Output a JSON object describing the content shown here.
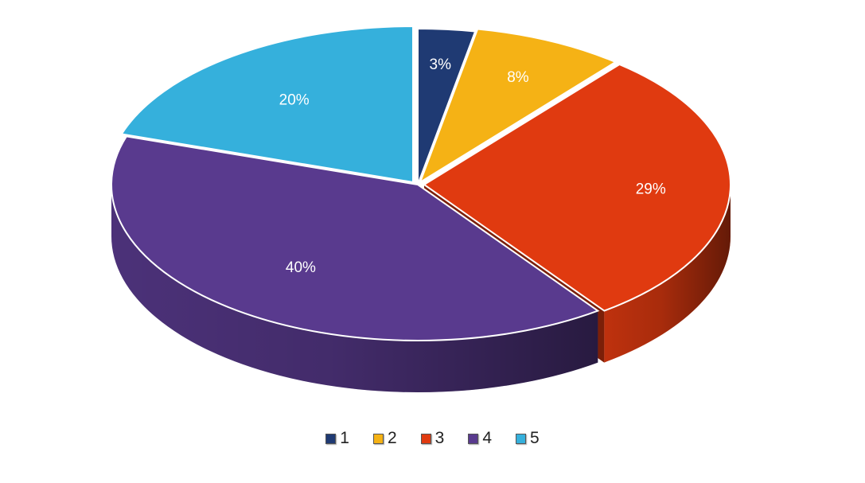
{
  "chart_data": {
    "type": "pie",
    "style": "3d",
    "categories": [
      "1",
      "2",
      "3",
      "4",
      "5"
    ],
    "values": [
      3,
      8,
      29,
      40,
      20
    ],
    "labels": [
      "3%",
      "8%",
      "29%",
      "40%",
      "20%"
    ],
    "colors": [
      "#1f3a73",
      "#f5b215",
      "#e03a10",
      "#593a8e",
      "#35b0dc"
    ],
    "title": "",
    "legend_position": "bottom"
  }
}
